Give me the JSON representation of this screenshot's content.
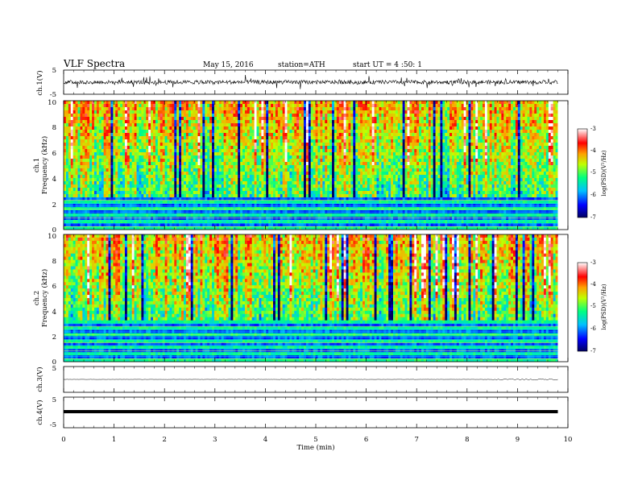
{
  "header": {
    "title": "VLF Spectra",
    "date": "May 15, 2016",
    "station": "station=ATH",
    "start": "start UT = 4 :50: 1"
  },
  "chart_data": [
    {
      "type": "line",
      "panel": "ch.1 waveform",
      "ylabel": "ch.1(V)",
      "ylim": [
        -5,
        5
      ],
      "yticks": [
        "5",
        "-5"
      ],
      "x_range_min": [
        0,
        9.8
      ],
      "description_values": {
        "baseline": 0,
        "typical_amplitude": 1
      }
    },
    {
      "type": "heatmap",
      "panel": "ch.1 spectrogram",
      "ylabel_top": "ch.1",
      "ylabel": "Frequency (kHz)",
      "ylim": [
        0,
        10
      ],
      "yticks": [
        "0",
        "2",
        "4",
        "6",
        "8",
        "10"
      ],
      "x_range_min": [
        0,
        9.8
      ],
      "colorbar": {
        "label": "log(PSD)(V²/Hz)",
        "ticks": [
          "-3",
          "-4",
          "-5",
          "-6",
          "-7"
        ],
        "range": [
          -7,
          -3
        ]
      },
      "color_scale": [
        "#000060",
        "#0000ff",
        "#00c0ff",
        "#00ff80",
        "#c0ff00",
        "#ffa000",
        "#ff0000",
        "#ffffff"
      ]
    },
    {
      "type": "heatmap",
      "panel": "ch.2 spectrogram",
      "ylabel_top": "ch.2",
      "ylabel": "Frequency (kHz)",
      "ylim": [
        0,
        10
      ],
      "yticks": [
        "0",
        "2",
        "4",
        "6",
        "8",
        "10"
      ],
      "x_range_min": [
        0,
        9.8
      ],
      "colorbar": {
        "label": "log(PSD)(V²/Hz)",
        "ticks": [
          "-3",
          "-4",
          "-5",
          "-6",
          "-7"
        ],
        "range": [
          -7,
          -3
        ]
      }
    },
    {
      "type": "line",
      "panel": "ch.3 waveform",
      "ylabel": "ch.3(V)",
      "ylim": [
        -5,
        5
      ],
      "yticks": [
        "5"
      ],
      "x_range_min": [
        0,
        9.8
      ],
      "description_values": {
        "baseline": 0
      }
    },
    {
      "type": "line",
      "panel": "ch.4 waveform",
      "ylabel": "ch.4(V)",
      "ylim": [
        -5,
        5
      ],
      "yticks": [
        "5",
        "-5"
      ],
      "x_range_min": [
        0,
        9.8
      ],
      "description_values": {
        "baseline": 0
      }
    }
  ],
  "xaxis": {
    "label": "Time (min)",
    "ticks": [
      "0",
      "1",
      "2",
      "3",
      "4",
      "5",
      "6",
      "7",
      "8",
      "9",
      "10"
    ],
    "xlim": [
      0,
      10
    ]
  }
}
